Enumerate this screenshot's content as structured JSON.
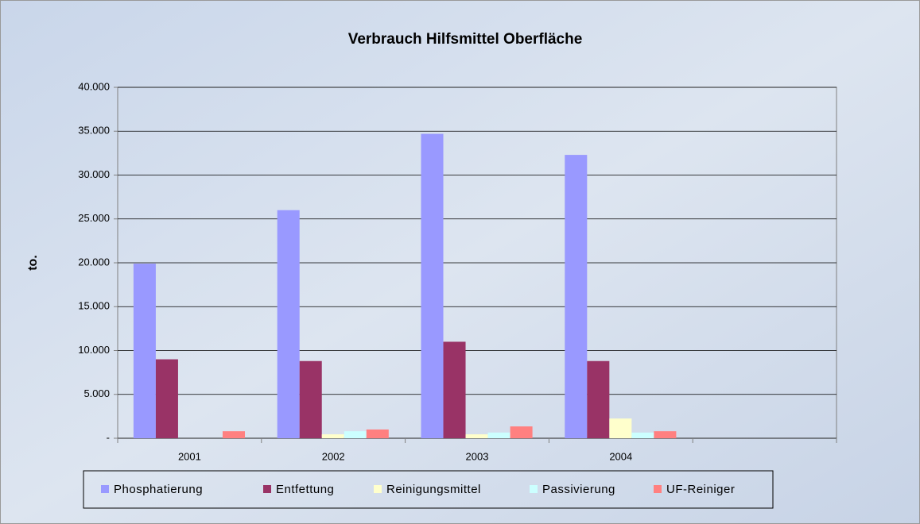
{
  "chart_data": {
    "type": "bar",
    "title": "Verbrauch Hilfsmittel Oberfläche",
    "y_label": "to.",
    "categories": [
      "2001",
      "2002",
      "2003",
      "2004",
      null
    ],
    "series": [
      {
        "name": "Phosphatierung",
        "color": "#9999ff",
        "values": [
          19900,
          26000,
          34700,
          32300,
          null
        ]
      },
      {
        "name": "Entfettung",
        "color": "#993366",
        "values": [
          9000,
          8800,
          11000,
          8800,
          null
        ]
      },
      {
        "name": "Reinigungsmittel",
        "color": "#ffffcc",
        "values": [
          0,
          450,
          450,
          2250,
          null
        ]
      },
      {
        "name": "Passivierung",
        "color": "#ccffff",
        "values": [
          0,
          800,
          650,
          650,
          null
        ]
      },
      {
        "name": "UF-Reiniger",
        "color": "#ff8080",
        "values": [
          800,
          1000,
          1350,
          800,
          null
        ]
      }
    ],
    "ylim": [
      0,
      40000
    ],
    "yticks": [
      {
        "value": 0,
        "label": "-"
      },
      {
        "value": 5000,
        "label": "5.000"
      },
      {
        "value": 10000,
        "label": "10.000"
      },
      {
        "value": 15000,
        "label": "15.000"
      },
      {
        "value": 20000,
        "label": "20.000"
      },
      {
        "value": 25000,
        "label": "25.000"
      },
      {
        "value": 30000,
        "label": "30.000"
      },
      {
        "value": 35000,
        "label": "35.000"
      },
      {
        "value": 40000,
        "label": "40.000"
      }
    ],
    "grid": true,
    "legend": "bottom"
  }
}
